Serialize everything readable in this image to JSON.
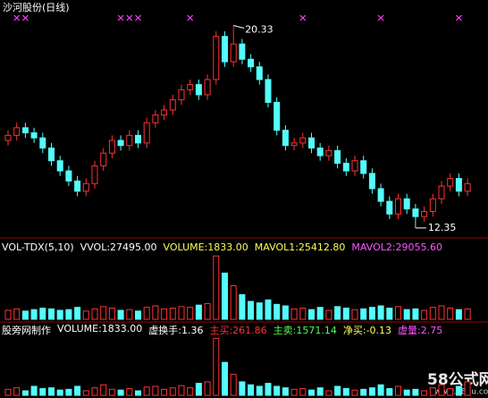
{
  "chart_data": {
    "type": "candlestick",
    "title": "沙河股份(日线)",
    "up_color": "#ff3232",
    "down_color": "#54fcfc",
    "signal_color": "#ff40ff",
    "ylim": [
      12.1,
      20.7
    ],
    "open": [
      15.8,
      16.0,
      16.3,
      16.1,
      15.9,
      15.5,
      15.0,
      14.6,
      14.2,
      13.8,
      14.1,
      14.8,
      15.3,
      15.8,
      15.6,
      16.0,
      15.7,
      16.5,
      16.8,
      17.0,
      17.4,
      17.8,
      18.0,
      17.6,
      18.2,
      19.9,
      18.9,
      19.6,
      19.0,
      18.7,
      18.2,
      17.3,
      16.2,
      15.6,
      15.7,
      15.9,
      15.5,
      15.2,
      15.4,
      14.9,
      14.6,
      15.0,
      14.5,
      13.9,
      13.4,
      12.9,
      13.5,
      13.1,
      12.8,
      13.0,
      13.5,
      14.0,
      14.3,
      13.8
    ],
    "high": [
      16.2,
      16.5,
      16.5,
      16.3,
      16.1,
      15.7,
      15.2,
      14.8,
      14.4,
      14.3,
      15.0,
      15.5,
      16.0,
      16.0,
      16.2,
      16.2,
      16.7,
      17.0,
      17.2,
      17.6,
      18.0,
      18.2,
      18.2,
      18.4,
      20.1,
      20.1,
      20.33,
      19.8,
      19.2,
      18.9,
      18.4,
      17.5,
      16.4,
      15.9,
      16.1,
      16.1,
      15.7,
      15.6,
      15.6,
      15.1,
      15.2,
      15.2,
      14.7,
      14.1,
      13.6,
      13.7,
      13.7,
      13.3,
      13.2,
      13.7,
      14.2,
      14.5,
      14.5,
      14.3
    ],
    "low": [
      15.6,
      15.8,
      15.9,
      15.7,
      15.3,
      14.8,
      14.4,
      14.0,
      13.6,
      13.6,
      13.9,
      14.6,
      15.1,
      15.4,
      15.4,
      15.5,
      15.5,
      16.3,
      16.6,
      16.8,
      17.2,
      17.6,
      17.4,
      17.4,
      18.0,
      18.7,
      18.7,
      18.8,
      18.5,
      18.0,
      17.1,
      16.0,
      15.4,
      15.4,
      15.5,
      15.3,
      15.0,
      15.0,
      14.7,
      14.4,
      14.4,
      14.3,
      13.7,
      13.2,
      12.7,
      12.7,
      12.9,
      12.35,
      12.6,
      12.8,
      13.3,
      13.8,
      13.6,
      13.6
    ],
    "close": [
      16.0,
      16.3,
      16.1,
      15.9,
      15.5,
      15.0,
      14.6,
      14.2,
      13.8,
      14.1,
      14.8,
      15.3,
      15.8,
      15.6,
      16.0,
      15.7,
      16.5,
      16.8,
      17.0,
      17.4,
      17.8,
      18.0,
      17.6,
      18.2,
      19.9,
      18.9,
      19.6,
      19.0,
      18.7,
      18.2,
      17.3,
      16.2,
      15.6,
      15.7,
      15.9,
      15.5,
      15.2,
      15.4,
      14.9,
      14.6,
      15.0,
      14.5,
      13.9,
      13.4,
      12.9,
      13.5,
      13.1,
      12.8,
      13.0,
      13.5,
      14.0,
      14.3,
      13.8,
      14.1
    ],
    "signal_index": [
      1,
      2,
      13,
      14,
      15,
      21,
      34,
      43,
      52
    ],
    "vol_header": [
      "VOL-TDX(5,10)",
      "VVOL:27495.00",
      "VOLUME:1833.00",
      "MAVOL1:25412.80",
      "MAVOL2:29055.60"
    ],
    "vol_header_colors": [
      "#ffffff",
      "#ffffff",
      "#ffff54",
      "#ffff54",
      "#ff54ff"
    ],
    "vlim": [
      0,
      90000
    ],
    "volume": [
      12000,
      14000,
      11000,
      13000,
      15000,
      14000,
      12000,
      13000,
      16000,
      11000,
      14000,
      17000,
      15000,
      12000,
      13000,
      11000,
      16000,
      18000,
      14000,
      15000,
      17000,
      16000,
      19000,
      21000,
      85000,
      62000,
      45000,
      33000,
      24000,
      22000,
      26000,
      20000,
      18000,
      14000,
      15000,
      13000,
      16000,
      12000,
      17000,
      15000,
      13000,
      14000,
      16000,
      18000,
      15000,
      17000,
      13000,
      14000,
      12000,
      16000,
      18000,
      15000,
      13000,
      14000
    ],
    "ind_header": [
      "股旁网制作",
      "VOLUME:1833.00",
      "虚换手:1.36",
      "主买:261.86",
      "主卖:1571.14",
      "净买:-0.13",
      "虚量:2.75"
    ],
    "ind_header_colors": [
      "#ffffff",
      "#ffffff",
      "#ffffff",
      "#ff3232",
      "#54ff54",
      "#ffff54",
      "#ff54ff"
    ],
    "v2lim": [
      0,
      40000
    ],
    "volume2": [
      4000,
      5000,
      3000,
      6000,
      4500,
      5000,
      3500,
      4000,
      6000,
      3000,
      5000,
      7000,
      4000,
      3500,
      4500,
      3000,
      5500,
      6000,
      4000,
      5000,
      6500,
      5000,
      8000,
      9000,
      38000,
      22000,
      14000,
      9000,
      7000,
      6000,
      8000,
      6000,
      5000,
      4000,
      4500,
      3500,
      5000,
      3000,
      6000,
      4500,
      3500,
      4000,
      5000,
      7000,
      4500,
      6000,
      3500,
      4000,
      3000,
      5000,
      7000,
      4500,
      6000,
      9000
    ],
    "watermark": "58公式网",
    "watermark_url": "www.58gu.com"
  }
}
